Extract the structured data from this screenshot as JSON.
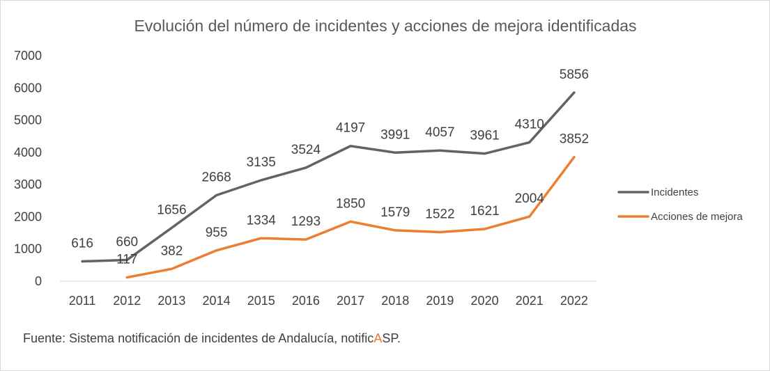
{
  "chart_data": {
    "type": "line",
    "title": "Evolución del número de incidentes y acciones de mejora identificadas",
    "x": [
      "2011",
      "2012",
      "2013",
      "2014",
      "2015",
      "2016",
      "2017",
      "2018",
      "2019",
      "2020",
      "2021",
      "2022"
    ],
    "series": [
      {
        "name": "Incidentes",
        "color": "#636363",
        "values": [
          616,
          660,
          1656,
          2668,
          3135,
          3524,
          4197,
          3991,
          4057,
          3961,
          4310,
          5856
        ]
      },
      {
        "name": "Acciones de mejora",
        "color": "#ed7d31",
        "values": [
          null,
          117,
          382,
          955,
          1334,
          1293,
          1850,
          1579,
          1522,
          1621,
          2004,
          3852
        ]
      }
    ],
    "ylim": [
      0,
      7000
    ],
    "yticks": [
      0,
      1000,
      2000,
      3000,
      4000,
      5000,
      6000,
      7000
    ],
    "grid": false,
    "legend": "right"
  },
  "source": {
    "prefix": "Fuente: Sistema notificación de incidentes de Andalucía, notific",
    "accent": "A",
    "suffix": "SP."
  }
}
